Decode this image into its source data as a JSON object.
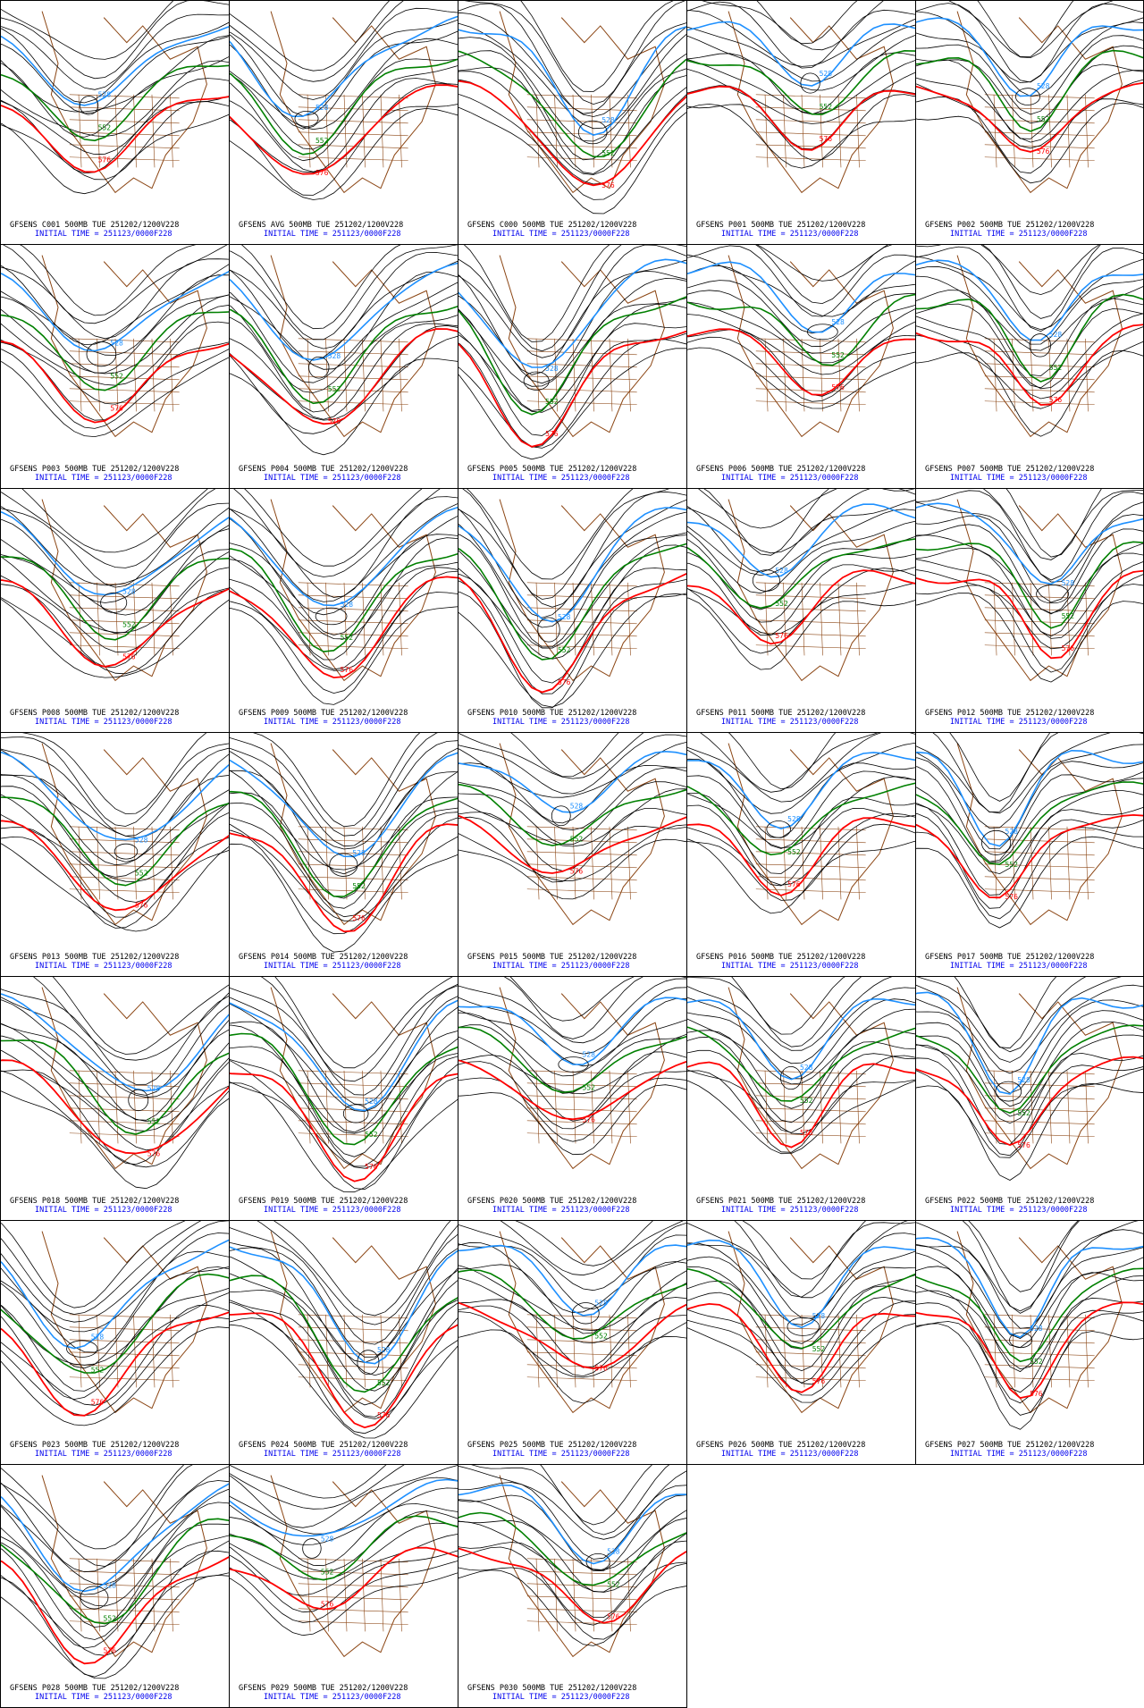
{
  "colors": {
    "contour": "#000000",
    "coast": "#8b4513",
    "c528": "#1e90ff",
    "c552": "#008000",
    "c576": "#ff0000",
    "caption_top": "#000000",
    "caption_bottom": "#0000ee"
  },
  "contour_labels": {
    "c528": "528",
    "c552": "552",
    "c576": "576"
  },
  "initial_time": "INITIAL TIME = 251123/0000F228",
  "panels": [
    {
      "caption": "GFSENS C001 500MB TUE 251202/1200V228"
    },
    {
      "caption": "GFSENS AVG 500MB TUE 251202/1200V228"
    },
    {
      "caption": "GFSENS C000 500MB TUE 251202/1200V228"
    },
    {
      "caption": "GFSENS P001 500MB TUE 251202/1200V228"
    },
    {
      "caption": "GFSENS P002 500MB TUE 251202/1200V228"
    },
    {
      "caption": "GFSENS P003 500MB TUE 251202/1200V228"
    },
    {
      "caption": "GFSENS P004 500MB TUE 251202/1200V228"
    },
    {
      "caption": "GFSENS P005 500MB TUE 251202/1200V228"
    },
    {
      "caption": "GFSENS P006 500MB TUE 251202/1200V228"
    },
    {
      "caption": "GFSENS P007 500MB TUE 251202/1200V228"
    },
    {
      "caption": "GFSENS P008 500MB TUE 251202/1200V228"
    },
    {
      "caption": "GFSENS P009 500MB TUE 251202/1200V228"
    },
    {
      "caption": "GFSENS P010 500MB TUE 251202/1200V228"
    },
    {
      "caption": "GFSENS P011 500MB TUE 251202/1200V228"
    },
    {
      "caption": "GFSENS P012 500MB TUE 251202/1200V228"
    },
    {
      "caption": "GFSENS P013 500MB TUE 251202/1200V228"
    },
    {
      "caption": "GFSENS P014 500MB TUE 251202/1200V228"
    },
    {
      "caption": "GFSENS P015 500MB TUE 251202/1200V228"
    },
    {
      "caption": "GFSENS P016 500MB TUE 251202/1200V228"
    },
    {
      "caption": "GFSENS P017 500MB TUE 251202/1200V228"
    },
    {
      "caption": "GFSENS P018 500MB TUE 251202/1200V228"
    },
    {
      "caption": "GFSENS P019 500MB TUE 251202/1200V228"
    },
    {
      "caption": "GFSENS P020 500MB TUE 251202/1200V228"
    },
    {
      "caption": "GFSENS P021 500MB TUE 251202/1200V228"
    },
    {
      "caption": "GFSENS P022 500MB TUE 251202/1200V228"
    },
    {
      "caption": "GFSENS P023 500MB TUE 251202/1200V228"
    },
    {
      "caption": "GFSENS P024 500MB TUE 251202/1200V228"
    },
    {
      "caption": "GFSENS P025 500MB TUE 251202/1200V228"
    },
    {
      "caption": "GFSENS P026 500MB TUE 251202/1200V228"
    },
    {
      "caption": "GFSENS P027 500MB TUE 251202/1200V228"
    },
    {
      "caption": "GFSENS P028 500MB TUE 251202/1200V228"
    },
    {
      "caption": "GFSENS P029 500MB TUE 251202/1200V228"
    },
    {
      "caption": "GFSENS P030 500MB TUE 251202/1200V228"
    }
  ]
}
